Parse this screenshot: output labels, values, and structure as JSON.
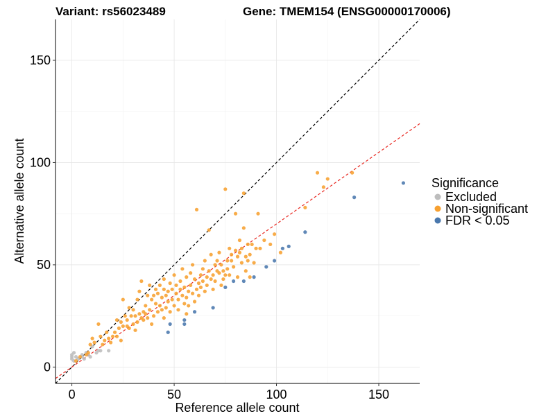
{
  "title_left": "Variant: rs56023489",
  "title_right": "Gene: TMEM154 (ENSG00000170006)",
  "chart_data": {
    "type": "scatter",
    "title": "Variant: rs56023489        Gene: TMEM154 (ENSG00000170006)",
    "xlabel": "Reference allele count",
    "ylabel": "Alternative allele count",
    "xlim": [
      -8,
      170
    ],
    "ylim": [
      -8,
      170
    ],
    "x_ticks": [
      0,
      50,
      100,
      150
    ],
    "y_ticks": [
      0,
      50,
      100,
      150
    ],
    "x_tick_labels": [
      "0",
      "50",
      "100",
      "150"
    ],
    "y_tick_labels": [
      "0",
      "50",
      "100",
      "150"
    ],
    "grid": true,
    "legend": {
      "title": "Significance",
      "position": "right",
      "entries": [
        "Excluded",
        "Non-significant",
        "FDR < 0.05"
      ]
    },
    "colors": {
      "Excluded": "#bdbdbd",
      "Non-significant": "#f7a030",
      "FDR < 0.05": "#4a78ad",
      "identity_line": "#000000",
      "fit_line": "#e8261f"
    },
    "reference_lines": [
      {
        "name": "identity",
        "slope": 1.0,
        "intercept": 0,
        "style": "dashed"
      },
      {
        "name": "fit",
        "slope": 0.7,
        "intercept": 0,
        "style": "dashed"
      }
    ],
    "series": [
      {
        "name": "Excluded",
        "points": [
          [
            0,
            6
          ],
          [
            0,
            5
          ],
          [
            0,
            4
          ],
          [
            1,
            3
          ],
          [
            1,
            7
          ],
          [
            2,
            5
          ],
          [
            3,
            4
          ],
          [
            5,
            6
          ],
          [
            5,
            5
          ],
          [
            6,
            4
          ],
          [
            7,
            7
          ],
          [
            8,
            6
          ],
          [
            9,
            5
          ],
          [
            10,
            10
          ],
          [
            12,
            7
          ],
          [
            13,
            8
          ],
          [
            14,
            8
          ],
          [
            18,
            8
          ]
        ]
      },
      {
        "name": "Non-significant",
        "points": [
          [
            2,
            3
          ],
          [
            4,
            5
          ],
          [
            7,
            6
          ],
          [
            8,
            7
          ],
          [
            9,
            11
          ],
          [
            10,
            14
          ],
          [
            11,
            12
          ],
          [
            13,
            21
          ],
          [
            14,
            15
          ],
          [
            15,
            11
          ],
          [
            16,
            13
          ],
          [
            17,
            17
          ],
          [
            18,
            14
          ],
          [
            19,
            12
          ],
          [
            20,
            15
          ],
          [
            21,
            17
          ],
          [
            22,
            15
          ],
          [
            22,
            23
          ],
          [
            23,
            19
          ],
          [
            24,
            13
          ],
          [
            24,
            22
          ],
          [
            25,
            33
          ],
          [
            25,
            20
          ],
          [
            26,
            25
          ],
          [
            27,
            20
          ],
          [
            27,
            23
          ],
          [
            28,
            29
          ],
          [
            28,
            19
          ],
          [
            29,
            25
          ],
          [
            30,
            21
          ],
          [
            30,
            28
          ],
          [
            31,
            25
          ],
          [
            31,
            18
          ],
          [
            32,
            22
          ],
          [
            32,
            33
          ],
          [
            33,
            26
          ],
          [
            33,
            37
          ],
          [
            34,
            24
          ],
          [
            34,
            42
          ],
          [
            35,
            27
          ],
          [
            35,
            23
          ],
          [
            36,
            30
          ],
          [
            36,
            26
          ],
          [
            37,
            35
          ],
          [
            37,
            24
          ],
          [
            38,
            40
          ],
          [
            38,
            28
          ],
          [
            39,
            33
          ],
          [
            39,
            21
          ],
          [
            40,
            35
          ],
          [
            40,
            25
          ],
          [
            41,
            31
          ],
          [
            41,
            38
          ],
          [
            42,
            36
          ],
          [
            42,
            27
          ],
          [
            43,
            30
          ],
          [
            43,
            40
          ],
          [
            44,
            34
          ],
          [
            44,
            28
          ],
          [
            45,
            38
          ],
          [
            45,
            24
          ],
          [
            45,
            43
          ],
          [
            46,
            29
          ],
          [
            46,
            35
          ],
          [
            47,
            37
          ],
          [
            47,
            32
          ],
          [
            48,
            27
          ],
          [
            48,
            41
          ],
          [
            49,
            33
          ],
          [
            49,
            38
          ],
          [
            50,
            30
          ],
          [
            50,
            45
          ],
          [
            51,
            36
          ],
          [
            51,
            40
          ],
          [
            52,
            33
          ],
          [
            52,
            28
          ],
          [
            53,
            38
          ],
          [
            53,
            42
          ],
          [
            54,
            35
          ],
          [
            54,
            48
          ],
          [
            55,
            31
          ],
          [
            55,
            39
          ],
          [
            56,
            34
          ],
          [
            56,
            26
          ],
          [
            56,
            44
          ],
          [
            57,
            37
          ],
          [
            57,
            30
          ],
          [
            58,
            40
          ],
          [
            58,
            46
          ],
          [
            59,
            36
          ],
          [
            59,
            50
          ],
          [
            60,
            32
          ],
          [
            60,
            43
          ],
          [
            61,
            38
          ],
          [
            61,
            77
          ],
          [
            62,
            41
          ],
          [
            62,
            35
          ],
          [
            63,
            45
          ],
          [
            63,
            39
          ],
          [
            64,
            48
          ],
          [
            64,
            42
          ],
          [
            65,
            37
          ],
          [
            65,
            52
          ],
          [
            66,
            44
          ],
          [
            66,
            40
          ],
          [
            67,
            47
          ],
          [
            67,
            67
          ],
          [
            68,
            43
          ],
          [
            68,
            55
          ],
          [
            69,
            45
          ],
          [
            69,
            38
          ],
          [
            70,
            50
          ],
          [
            70,
            42
          ],
          [
            71,
            47
          ],
          [
            71,
            52
          ],
          [
            72,
            46
          ],
          [
            72,
            56
          ],
          [
            73,
            40
          ],
          [
            73,
            50
          ],
          [
            74,
            43
          ],
          [
            74,
            47
          ],
          [
            75,
            87
          ],
          [
            75,
            45
          ],
          [
            76,
            52
          ],
          [
            76,
            48
          ],
          [
            77,
            58
          ],
          [
            77,
            45
          ],
          [
            78,
            52
          ],
          [
            78,
            55
          ],
          [
            79,
            49
          ],
          [
            80,
            75
          ],
          [
            80,
            57
          ],
          [
            81,
            54
          ],
          [
            81,
            44
          ],
          [
            82,
            56
          ],
          [
            82,
            62
          ],
          [
            83,
            51
          ],
          [
            83,
            58
          ],
          [
            84,
            68
          ],
          [
            84,
            85
          ],
          [
            85,
            54
          ],
          [
            85,
            47
          ],
          [
            86,
            60
          ],
          [
            86,
            52
          ],
          [
            87,
            55
          ],
          [
            87,
            44
          ],
          [
            88,
            60
          ],
          [
            89,
            51
          ],
          [
            90,
            58
          ],
          [
            91,
            75
          ],
          [
            92,
            58
          ],
          [
            94,
            62
          ],
          [
            97,
            60
          ],
          [
            99,
            65
          ],
          [
            102,
            56
          ],
          [
            114,
            78
          ],
          [
            120,
            95
          ],
          [
            123,
            88
          ],
          [
            125,
            92
          ],
          [
            137,
            95
          ]
        ]
      },
      {
        "name": "FDR < 0.05",
        "points": [
          [
            47,
            17
          ],
          [
            48,
            21
          ],
          [
            55,
            23
          ],
          [
            55,
            21
          ],
          [
            60,
            27
          ],
          [
            69,
            29
          ],
          [
            75,
            39
          ],
          [
            79,
            42
          ],
          [
            84,
            42
          ],
          [
            89,
            44
          ],
          [
            95,
            49
          ],
          [
            99,
            52
          ],
          [
            103,
            58
          ],
          [
            106,
            59
          ],
          [
            114,
            66
          ],
          [
            138,
            83
          ],
          [
            162,
            90
          ]
        ]
      }
    ]
  }
}
